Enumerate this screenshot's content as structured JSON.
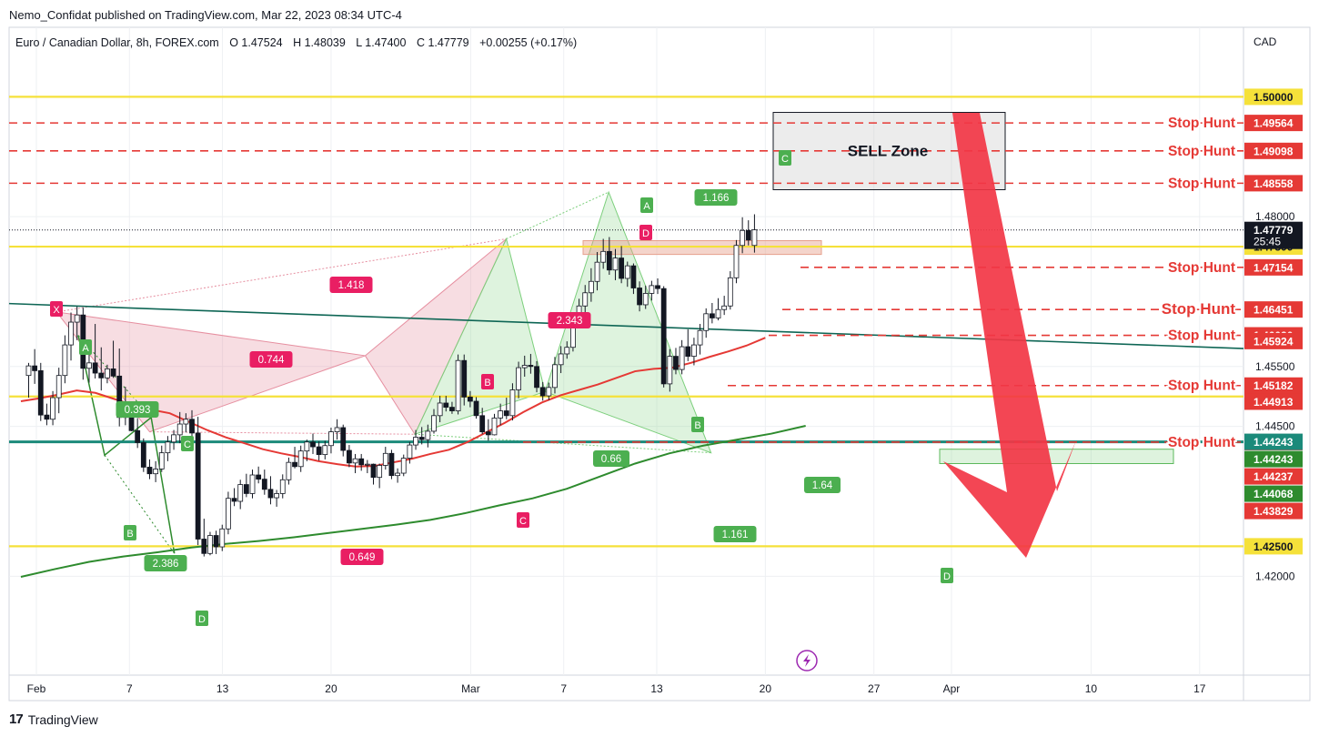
{
  "header": {
    "published_line": "Nemo_Confidat published on TradingView.com, Mar 22, 2023 08:34 UTC-4"
  },
  "footer": {
    "brand": "TradingView",
    "logo_icon": "tradingview-logo-icon"
  },
  "chart_data": {
    "type": "candlestick",
    "symbol_line": "Euro / Canadian Dollar, 8h, FOREX.com",
    "ohlc": {
      "o_label": "O",
      "o": "1.47524",
      "h_label": "H",
      "h": "1.48039",
      "l_label": "L",
      "l": "1.47400",
      "c_label": "C",
      "c": "1.47779",
      "change": "+0.00255 (+0.17%)"
    },
    "currency": "CAD",
    "ylim": [
      1.4035,
      1.5116
    ],
    "yticks": [
      "1.42000",
      "1.44500",
      "1.45500",
      "1.48000"
    ],
    "x_range_days": [
      0,
      48.2
    ],
    "xticks": [
      {
        "label": "Feb",
        "day": 1
      },
      {
        "label": "7",
        "day": 7
      },
      {
        "label": "13",
        "day": 13
      },
      {
        "label": "20",
        "day": 20
      },
      {
        "label": "Mar",
        "day": 29
      },
      {
        "label": "7",
        "day": 35
      },
      {
        "label": "13",
        "day": 41
      },
      {
        "label": "20",
        "day": 48
      },
      {
        "label": "27",
        "day": 55
      },
      {
        "label": "Apr",
        "day": 60
      },
      {
        "label": "10",
        "day": 69
      },
      {
        "label": "17",
        "day": 76
      }
    ],
    "colors": {
      "up": "#ffffff",
      "down": "#131722",
      "yellow": "#f5e13a",
      "stop": "#e53935",
      "ema": "#e53935",
      "sma": "#2e8b2e",
      "trend": "#0e6655",
      "bear": "#e68fa0",
      "bull": "#7ccf7c",
      "arrow": "#f23645"
    },
    "candles": [
      {
        "o": 1.4535,
        "h": 1.4556,
        "l": 1.4498,
        "c": 1.4551
      },
      {
        "o": 1.4551,
        "h": 1.4579,
        "l": 1.4521,
        "c": 1.4543
      },
      {
        "o": 1.4543,
        "h": 1.4556,
        "l": 1.4459,
        "c": 1.4469
      },
      {
        "o": 1.4469,
        "h": 1.4488,
        "l": 1.4452,
        "c": 1.4462
      },
      {
        "o": 1.4462,
        "h": 1.4509,
        "l": 1.4452,
        "c": 1.4498
      },
      {
        "o": 1.4498,
        "h": 1.4548,
        "l": 1.4472,
        "c": 1.4535
      },
      {
        "o": 1.4535,
        "h": 1.4602,
        "l": 1.4522,
        "c": 1.4586
      },
      {
        "o": 1.4586,
        "h": 1.464,
        "l": 1.456,
        "c": 1.4624
      },
      {
        "o": 1.4624,
        "h": 1.465,
        "l": 1.4594,
        "c": 1.4636
      },
      {
        "o": 1.4636,
        "h": 1.4648,
        "l": 1.4528,
        "c": 1.4547
      },
      {
        "o": 1.4547,
        "h": 1.4571,
        "l": 1.4523,
        "c": 1.4556
      },
      {
        "o": 1.4556,
        "h": 1.4621,
        "l": 1.453,
        "c": 1.4539
      },
      {
        "o": 1.4539,
        "h": 1.4582,
        "l": 1.451,
        "c": 1.4531
      },
      {
        "o": 1.4531,
        "h": 1.4553,
        "l": 1.4522,
        "c": 1.4546
      },
      {
        "o": 1.4546,
        "h": 1.4593,
        "l": 1.4531,
        "c": 1.4534
      },
      {
        "o": 1.4534,
        "h": 1.458,
        "l": 1.445,
        "c": 1.4465
      },
      {
        "o": 1.4465,
        "h": 1.4516,
        "l": 1.4452,
        "c": 1.4475
      },
      {
        "o": 1.4475,
        "h": 1.4484,
        "l": 1.4442,
        "c": 1.4443
      },
      {
        "o": 1.4443,
        "h": 1.4464,
        "l": 1.4414,
        "c": 1.4423
      },
      {
        "o": 1.4423,
        "h": 1.443,
        "l": 1.4374,
        "c": 1.4382
      },
      {
        "o": 1.4382,
        "h": 1.4395,
        "l": 1.4362,
        "c": 1.4371
      },
      {
        "o": 1.4371,
        "h": 1.4392,
        "l": 1.4357,
        "c": 1.4379
      },
      {
        "o": 1.4379,
        "h": 1.4418,
        "l": 1.4374,
        "c": 1.4406
      },
      {
        "o": 1.4406,
        "h": 1.4434,
        "l": 1.4392,
        "c": 1.4424
      },
      {
        "o": 1.4424,
        "h": 1.4444,
        "l": 1.4411,
        "c": 1.4436
      },
      {
        "o": 1.4436,
        "h": 1.4474,
        "l": 1.4422,
        "c": 1.4454
      },
      {
        "o": 1.4454,
        "h": 1.4472,
        "l": 1.444,
        "c": 1.4462
      },
      {
        "o": 1.4462,
        "h": 1.4477,
        "l": 1.4429,
        "c": 1.4439
      },
      {
        "o": 1.4439,
        "h": 1.4466,
        "l": 1.4252,
        "c": 1.4262
      },
      {
        "o": 1.4262,
        "h": 1.4296,
        "l": 1.4233,
        "c": 1.4238
      },
      {
        "o": 1.4238,
        "h": 1.4274,
        "l": 1.4235,
        "c": 1.4268
      },
      {
        "o": 1.4268,
        "h": 1.4276,
        "l": 1.4237,
        "c": 1.4249
      },
      {
        "o": 1.4249,
        "h": 1.4286,
        "l": 1.4242,
        "c": 1.4279
      },
      {
        "o": 1.4279,
        "h": 1.4341,
        "l": 1.427,
        "c": 1.433
      },
      {
        "o": 1.433,
        "h": 1.4347,
        "l": 1.4317,
        "c": 1.4325
      },
      {
        "o": 1.4325,
        "h": 1.4361,
        "l": 1.4312,
        "c": 1.4353
      },
      {
        "o": 1.4353,
        "h": 1.4371,
        "l": 1.4332,
        "c": 1.4338
      },
      {
        "o": 1.4338,
        "h": 1.4378,
        "l": 1.433,
        "c": 1.4369
      },
      {
        "o": 1.4369,
        "h": 1.4383,
        "l": 1.4355,
        "c": 1.4362
      },
      {
        "o": 1.4362,
        "h": 1.4378,
        "l": 1.4336,
        "c": 1.4345
      },
      {
        "o": 1.4345,
        "h": 1.4367,
        "l": 1.432,
        "c": 1.4331
      },
      {
        "o": 1.4331,
        "h": 1.4344,
        "l": 1.4316,
        "c": 1.4338
      },
      {
        "o": 1.4338,
        "h": 1.437,
        "l": 1.433,
        "c": 1.4361
      },
      {
        "o": 1.4361,
        "h": 1.4398,
        "l": 1.4353,
        "c": 1.439
      },
      {
        "o": 1.439,
        "h": 1.4416,
        "l": 1.438,
        "c": 1.4383
      },
      {
        "o": 1.4383,
        "h": 1.4418,
        "l": 1.4374,
        "c": 1.4409
      },
      {
        "o": 1.4409,
        "h": 1.4428,
        "l": 1.4392,
        "c": 1.4424
      },
      {
        "o": 1.4424,
        "h": 1.4438,
        "l": 1.4404,
        "c": 1.4416
      },
      {
        "o": 1.4416,
        "h": 1.4425,
        "l": 1.4393,
        "c": 1.4403
      },
      {
        "o": 1.4403,
        "h": 1.4426,
        "l": 1.4395,
        "c": 1.4418
      },
      {
        "o": 1.4418,
        "h": 1.4448,
        "l": 1.4405,
        "c": 1.4441
      },
      {
        "o": 1.4441,
        "h": 1.4462,
        "l": 1.4428,
        "c": 1.4448
      },
      {
        "o": 1.4448,
        "h": 1.4453,
        "l": 1.44,
        "c": 1.441
      },
      {
        "o": 1.441,
        "h": 1.4419,
        "l": 1.4382,
        "c": 1.4389
      },
      {
        "o": 1.4389,
        "h": 1.4404,
        "l": 1.4372,
        "c": 1.4396
      },
      {
        "o": 1.4396,
        "h": 1.4404,
        "l": 1.4376,
        "c": 1.4386
      },
      {
        "o": 1.4386,
        "h": 1.4394,
        "l": 1.4372,
        "c": 1.4387
      },
      {
        "o": 1.4387,
        "h": 1.4388,
        "l": 1.4353,
        "c": 1.4365
      },
      {
        "o": 1.4365,
        "h": 1.4388,
        "l": 1.4347,
        "c": 1.4385
      },
      {
        "o": 1.4385,
        "h": 1.4416,
        "l": 1.4378,
        "c": 1.4405
      },
      {
        "o": 1.4405,
        "h": 1.4411,
        "l": 1.4362,
        "c": 1.4368
      },
      {
        "o": 1.4368,
        "h": 1.438,
        "l": 1.4356,
        "c": 1.4372
      },
      {
        "o": 1.4372,
        "h": 1.4403,
        "l": 1.4367,
        "c": 1.4397
      },
      {
        "o": 1.4397,
        "h": 1.4424,
        "l": 1.4388,
        "c": 1.4419
      },
      {
        "o": 1.4419,
        "h": 1.4444,
        "l": 1.4411,
        "c": 1.4432
      },
      {
        "o": 1.4432,
        "h": 1.4449,
        "l": 1.442,
        "c": 1.4428
      },
      {
        "o": 1.4428,
        "h": 1.4453,
        "l": 1.4415,
        "c": 1.4442
      },
      {
        "o": 1.4442,
        "h": 1.4479,
        "l": 1.4438,
        "c": 1.4468
      },
      {
        "o": 1.4468,
        "h": 1.4501,
        "l": 1.4457,
        "c": 1.4489
      },
      {
        "o": 1.4489,
        "h": 1.4501,
        "l": 1.4475,
        "c": 1.4482
      },
      {
        "o": 1.4482,
        "h": 1.4491,
        "l": 1.4471,
        "c": 1.4476
      },
      {
        "o": 1.4476,
        "h": 1.457,
        "l": 1.447,
        "c": 1.456
      },
      {
        "o": 1.456,
        "h": 1.457,
        "l": 1.4485,
        "c": 1.4499
      },
      {
        "o": 1.4499,
        "h": 1.4509,
        "l": 1.4482,
        "c": 1.4492
      },
      {
        "o": 1.4492,
        "h": 1.4499,
        "l": 1.4463,
        "c": 1.4468
      },
      {
        "o": 1.4468,
        "h": 1.4481,
        "l": 1.4437,
        "c": 1.4441
      },
      {
        "o": 1.4441,
        "h": 1.4462,
        "l": 1.4426,
        "c": 1.4436
      },
      {
        "o": 1.4436,
        "h": 1.4471,
        "l": 1.4435,
        "c": 1.4464
      },
      {
        "o": 1.4464,
        "h": 1.4488,
        "l": 1.4452,
        "c": 1.4476
      },
      {
        "o": 1.4476,
        "h": 1.4498,
        "l": 1.4462,
        "c": 1.4468
      },
      {
        "o": 1.4468,
        "h": 1.4522,
        "l": 1.446,
        "c": 1.4511
      },
      {
        "o": 1.4511,
        "h": 1.4558,
        "l": 1.4497,
        "c": 1.4548
      },
      {
        "o": 1.4548,
        "h": 1.4568,
        "l": 1.4533,
        "c": 1.4552
      },
      {
        "o": 1.4552,
        "h": 1.4571,
        "l": 1.4538,
        "c": 1.455
      },
      {
        "o": 1.455,
        "h": 1.4559,
        "l": 1.4507,
        "c": 1.4515
      },
      {
        "o": 1.4515,
        "h": 1.4524,
        "l": 1.4493,
        "c": 1.4501
      },
      {
        "o": 1.4501,
        "h": 1.4523,
        "l": 1.4494,
        "c": 1.4515
      },
      {
        "o": 1.4515,
        "h": 1.4566,
        "l": 1.4505,
        "c": 1.4553
      },
      {
        "o": 1.4553,
        "h": 1.4584,
        "l": 1.4539,
        "c": 1.4571
      },
      {
        "o": 1.4571,
        "h": 1.4592,
        "l": 1.4563,
        "c": 1.4582
      },
      {
        "o": 1.4582,
        "h": 1.4637,
        "l": 1.4575,
        "c": 1.4626
      },
      {
        "o": 1.4626,
        "h": 1.4663,
        "l": 1.4616,
        "c": 1.4651
      },
      {
        "o": 1.4651,
        "h": 1.4686,
        "l": 1.4637,
        "c": 1.4673
      },
      {
        "o": 1.4673,
        "h": 1.4714,
        "l": 1.4658,
        "c": 1.4692
      },
      {
        "o": 1.4692,
        "h": 1.4741,
        "l": 1.4677,
        "c": 1.4724
      },
      {
        "o": 1.4724,
        "h": 1.4763,
        "l": 1.4713,
        "c": 1.4742
      },
      {
        "o": 1.4742,
        "h": 1.4766,
        "l": 1.4703,
        "c": 1.4711
      },
      {
        "o": 1.4711,
        "h": 1.4746,
        "l": 1.4694,
        "c": 1.4731
      },
      {
        "o": 1.4731,
        "h": 1.4751,
        "l": 1.4689,
        "c": 1.4697
      },
      {
        "o": 1.4697,
        "h": 1.4725,
        "l": 1.4683,
        "c": 1.4718
      },
      {
        "o": 1.4718,
        "h": 1.4722,
        "l": 1.4671,
        "c": 1.4681
      },
      {
        "o": 1.4681,
        "h": 1.4692,
        "l": 1.4642,
        "c": 1.4653
      },
      {
        "o": 1.4653,
        "h": 1.4685,
        "l": 1.4646,
        "c": 1.4672
      },
      {
        "o": 1.4672,
        "h": 1.4693,
        "l": 1.466,
        "c": 1.4685
      },
      {
        "o": 1.4685,
        "h": 1.4697,
        "l": 1.4671,
        "c": 1.468
      },
      {
        "o": 1.468,
        "h": 1.4684,
        "l": 1.4515,
        "c": 1.4521
      },
      {
        "o": 1.4521,
        "h": 1.4579,
        "l": 1.4508,
        "c": 1.4567
      },
      {
        "o": 1.4567,
        "h": 1.4581,
        "l": 1.4537,
        "c": 1.4545
      },
      {
        "o": 1.4545,
        "h": 1.4594,
        "l": 1.4537,
        "c": 1.4583
      },
      {
        "o": 1.4583,
        "h": 1.4612,
        "l": 1.4559,
        "c": 1.4567
      },
      {
        "o": 1.4567,
        "h": 1.4598,
        "l": 1.4552,
        "c": 1.4586
      },
      {
        "o": 1.4586,
        "h": 1.4621,
        "l": 1.457,
        "c": 1.461
      },
      {
        "o": 1.461,
        "h": 1.4647,
        "l": 1.4598,
        "c": 1.4638
      },
      {
        "o": 1.4638,
        "h": 1.4656,
        "l": 1.4622,
        "c": 1.4631
      },
      {
        "o": 1.4631,
        "h": 1.4664,
        "l": 1.4627,
        "c": 1.4645
      },
      {
        "o": 1.4645,
        "h": 1.4668,
        "l": 1.4636,
        "c": 1.4651
      },
      {
        "o": 1.4651,
        "h": 1.4709,
        "l": 1.4645,
        "c": 1.4698
      },
      {
        "o": 1.4698,
        "h": 1.4761,
        "l": 1.4689,
        "c": 1.4752
      },
      {
        "o": 1.4752,
        "h": 1.4799,
        "l": 1.4739,
        "c": 1.4777
      },
      {
        "o": 1.4777,
        "h": 1.4794,
        "l": 1.4752,
        "c": 1.4761
      },
      {
        "o": 1.4752,
        "h": 1.4804,
        "l": 1.474,
        "c": 1.4778
      }
    ],
    "horizontal_lines": [
      {
        "value": 1.5,
        "label": "1.50000"
      },
      {
        "value": 1.475,
        "label": "1.47500"
      },
      {
        "value": 1.45,
        "label": "1.45000"
      },
      {
        "value": 1.425,
        "label": "1.42500"
      }
    ],
    "stop_hunts": [
      {
        "text": "Stop Hunt",
        "value": 1.49564,
        "label": "1.49564"
      },
      {
        "text": "Stop Hunt",
        "value": 1.49098,
        "label": "1.49098"
      },
      {
        "text": "Stop Hunt",
        "value": 1.48558,
        "label": "1.48558"
      },
      {
        "text": "Stop Hunt",
        "value": 1.47154,
        "label": "1.47154"
      },
      {
        "text": "Stop Hunt",
        "value": 1.46451,
        "label": "1.46451"
      },
      {
        "text": "Stop Hunt",
        "value": 1.4602,
        "label": "1.46020"
      },
      {
        "text": "Stop Hunt",
        "value": 1.45182,
        "label": "1.45182"
      },
      {
        "text": "Stop Hunt",
        "value": 1.44238,
        "label": "1.44238"
      }
    ],
    "price_tags": [
      {
        "value": 1.49,
        "label": "1.49098",
        "bg": "#e53935",
        "hide": true
      },
      {
        "value": 1.47779,
        "label": "1.47779",
        "sub": "25:45",
        "bg": "#131722"
      },
      {
        "value": 1.45924,
        "label": "1.45924",
        "bg": "#e53935"
      },
      {
        "value": 1.44913,
        "label": "1.44913",
        "bg": "#e53935"
      },
      {
        "value": 1.44243,
        "label": "1.44243",
        "bg": "#1b8a7a"
      },
      {
        "value": 1.44243,
        "label": "1.44243",
        "bg": "#2e8b2e",
        "offset": 1
      },
      {
        "value": 1.44237,
        "label": "1.44237",
        "bg": "#e53935",
        "offset": 1
      },
      {
        "value": 1.44068,
        "label": "1.44068",
        "bg": "#2e8b2e",
        "offset": 1
      },
      {
        "value": 1.43829,
        "label": "1.43829",
        "bg": "#e53935",
        "offset": 1
      }
    ],
    "pattern_bear": {
      "points": [
        {
          "label": "X",
          "day": 2.3,
          "y": 1.4641
        },
        {
          "label": "A",
          "day": 8.3,
          "y": 1.4441
        },
        {
          "label": "B",
          "day": 22.2,
          "y": 1.4568
        },
        {
          "label": "C",
          "day": 25.4,
          "y": 1.4437
        },
        {
          "label": "D",
          "day": 31.3,
          "y": 1.4763
        }
      ],
      "ratios": [
        {
          "text": "0.744"
        },
        {
          "text": "1.418"
        },
        {
          "text": "0.649"
        },
        {
          "text": "2.343"
        }
      ]
    },
    "pattern_bull": {
      "points": [
        {
          "label": "A",
          "day": 3.7,
          "y": 1.4602
        },
        {
          "label": "B",
          "day": 5.4,
          "y": 1.4402
        },
        {
          "label": "C",
          "day": 8.4,
          "y": 1.4465
        },
        {
          "label": "D",
          "day": 9.9,
          "y": 1.4238
        }
      ],
      "ratios": [
        {
          "text": "0.393"
        },
        {
          "text": "2.386"
        }
      ]
    },
    "pattern_bull2": {
      "points": [
        {
          "label": "A",
          "day": 31.3,
          "y": 1.4763
        },
        {
          "label": "B",
          "day": 33.8,
          "y": 1.4508
        },
        {
          "label": "C",
          "day": 37.9,
          "y": 1.4841
        },
        {
          "label": "D",
          "day": 44.5,
          "y": 1.4406
        }
      ],
      "ratios": [
        {
          "text": "1.166"
        },
        {
          "text": "0.66"
        },
        {
          "text": "1.64"
        },
        {
          "text": "1.161"
        }
      ]
    },
    "sell_zone": {
      "text": "SELL Zone"
    },
    "ema": [
      1.4492,
      1.4497,
      1.4503,
      1.451,
      1.4506,
      1.4496,
      1.4486,
      1.4478,
      1.4472,
      1.4458,
      1.4444,
      1.4432,
      1.4422,
      1.4412,
      1.4405,
      1.4399,
      1.4392,
      1.4387,
      1.4383,
      1.4384,
      1.439,
      1.4396,
      1.4404,
      1.4411,
      1.4424,
      1.444,
      1.4456,
      1.4474,
      1.449,
      1.4502,
      1.4511,
      1.452,
      1.4531,
      1.4542,
      1.4546,
      1.4548,
      1.4556,
      1.4566,
      1.4575,
      1.4585,
      1.4598
    ],
    "sma": [
      1.4199,
      1.4212,
      1.4224,
      1.4233,
      1.424,
      1.4248,
      1.4254,
      1.4259,
      1.4265,
      1.4272,
      1.4279,
      1.4286,
      1.4294,
      1.4305,
      1.4318,
      1.433,
      1.4346,
      1.4367,
      1.4388,
      1.4405,
      1.4418,
      1.4428,
      1.4438,
      1.4451
    ]
  }
}
